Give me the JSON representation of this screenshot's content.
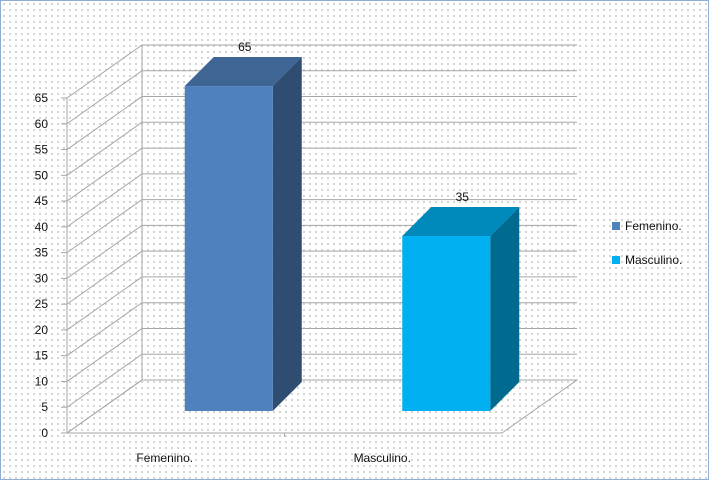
{
  "chart_data": {
    "type": "bar",
    "style": "3d-column",
    "title": "",
    "xlabel": "",
    "ylabel": "",
    "categories": [
      "Femenino.",
      "Masculino."
    ],
    "values": [
      65,
      35
    ],
    "data_labels": [
      "65",
      "35"
    ],
    "ylim": [
      0,
      65
    ],
    "y_ticks": [
      0,
      5,
      10,
      15,
      20,
      25,
      30,
      35,
      40,
      45,
      50,
      55,
      60,
      65
    ],
    "grid": true,
    "legend_position": "right",
    "legend": [
      {
        "label": "Femenino.",
        "color": "#4f81bd"
      },
      {
        "label": "Masculino.",
        "color": "#00b0f0"
      }
    ],
    "bar_colors": [
      "#4f81bd",
      "#00b0f0"
    ]
  }
}
